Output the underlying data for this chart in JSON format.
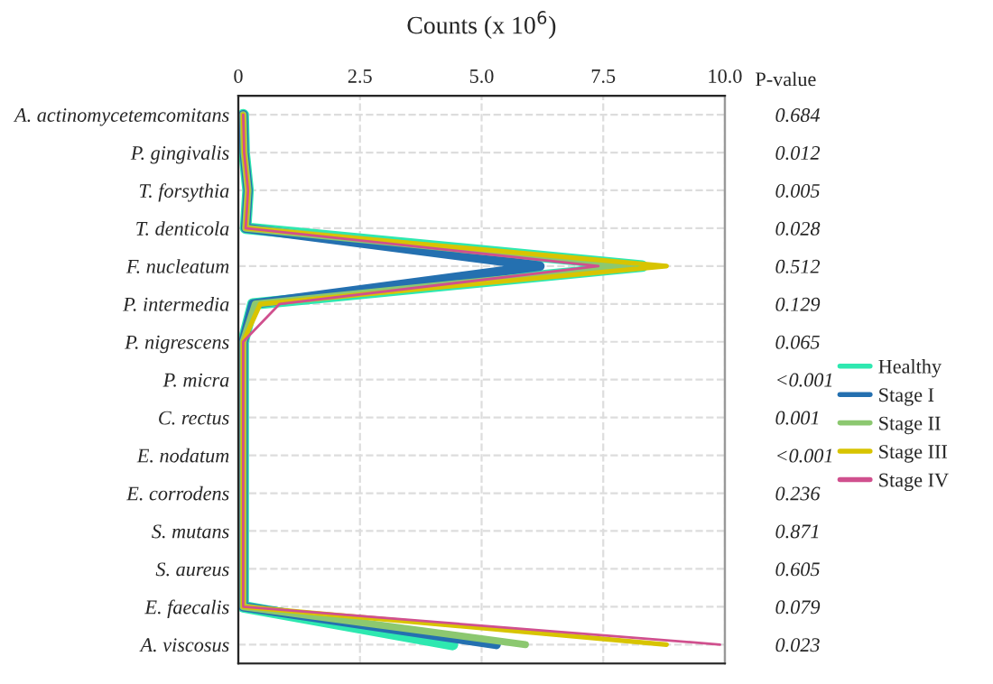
{
  "chart_data": {
    "type": "line",
    "orientation": "horizontal",
    "xlabel": "Counts (x 10$^{6}$)",
    "y2label": "P-value",
    "categories": [
      "A. actinomycetemcomitans",
      "P. gingivalis",
      "T. forsythia",
      "T. denticola",
      "F. nucleatum",
      "P. intermedia",
      "P. nigrescens",
      "P. micra",
      "C. rectus",
      "E. nodatum",
      "E. corrodens",
      "S. mutans",
      "S. aureus",
      "E. faecalis",
      "A. viscosus"
    ],
    "y2_categories": [
      "0.684",
      "0.012",
      "0.005",
      "0.028",
      "0.512",
      "0.129",
      "0.065",
      "<0.001",
      "0.001",
      "<0.001",
      "0.236",
      "0.871",
      "0.605",
      "0.079",
      "0.023"
    ],
    "series": [
      {
        "name": "Healthy",
        "color": "#2ee8b0",
        "values": [
          0.1,
          0.12,
          0.2,
          0.15,
          8.3,
          0.3,
          0.1,
          0.1,
          0.1,
          0.1,
          0.1,
          0.1,
          0.1,
          0.1,
          4.4
        ]
      },
      {
        "name": "Stage I",
        "color": "#2470b0",
        "values": [
          0.1,
          0.12,
          0.2,
          0.15,
          6.2,
          0.3,
          0.1,
          0.1,
          0.1,
          0.1,
          0.1,
          0.1,
          0.1,
          0.1,
          5.3
        ]
      },
      {
        "name": "Stage II",
        "color": "#8cc870",
        "values": [
          0.1,
          0.12,
          0.2,
          0.15,
          8.1,
          0.35,
          0.1,
          0.1,
          0.1,
          0.1,
          0.1,
          0.1,
          0.1,
          0.1,
          5.9
        ]
      },
      {
        "name": "Stage III",
        "color": "#d8c400",
        "values": [
          0.1,
          0.12,
          0.2,
          0.15,
          8.8,
          0.45,
          0.1,
          0.1,
          0.1,
          0.1,
          0.1,
          0.1,
          0.1,
          0.1,
          8.8
        ]
      },
      {
        "name": "Stage IV",
        "color": "#d0508e",
        "values": [
          0.1,
          0.12,
          0.2,
          0.15,
          7.4,
          0.85,
          0.1,
          0.1,
          0.1,
          0.1,
          0.1,
          0.1,
          0.1,
          0.1,
          9.9
        ]
      }
    ],
    "xlim": [
      0,
      10
    ],
    "xticks": [
      0,
      2.5,
      {
        "value": 5,
        "label": "5.0"
      },
      7.5,
      {
        "value": 10,
        "label": "10.0"
      }
    ],
    "grid": true,
    "legend": "right",
    "marker": "none",
    "line_style": "solid"
  }
}
